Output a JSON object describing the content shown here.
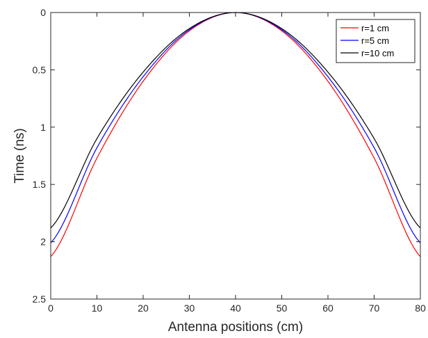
{
  "chart_data": {
    "type": "line",
    "title": "",
    "xlabel": "Antenna positions (cm)",
    "ylabel": "Time (ns)",
    "xlim": [
      0,
      80
    ],
    "ylim": [
      0,
      2.5
    ],
    "y_reversed": true,
    "x_ticks": [
      0,
      10,
      20,
      30,
      40,
      50,
      60,
      70,
      80
    ],
    "x_tick_labels": [
      "0",
      "10",
      "20",
      "30",
      "40",
      "50",
      "60",
      "70",
      "80"
    ],
    "y_ticks": [
      0,
      0.5,
      1,
      1.5,
      2,
      2.5
    ],
    "y_tick_labels": [
      "0",
      "0.5",
      "1",
      "1.5",
      "2",
      "2.5"
    ],
    "grid": false,
    "legend_position": "top-right",
    "x": [
      0,
      10,
      20,
      30,
      40,
      50,
      60,
      70,
      80
    ],
    "series": [
      {
        "name": "r=1 cm",
        "color": "#ff0000",
        "values": [
          2.13,
          1.27,
          0.6,
          0.16,
          0.0,
          0.16,
          0.6,
          1.27,
          2.13
        ]
      },
      {
        "name": "r=5 cm",
        "color": "#0000ff",
        "values": [
          2.01,
          1.18,
          0.56,
          0.15,
          0.0,
          0.15,
          0.56,
          1.18,
          2.01
        ]
      },
      {
        "name": "r=10 cm",
        "color": "#000000",
        "values": [
          1.88,
          1.1,
          0.52,
          0.14,
          0.0,
          0.14,
          0.52,
          1.1,
          1.88
        ]
      }
    ]
  }
}
